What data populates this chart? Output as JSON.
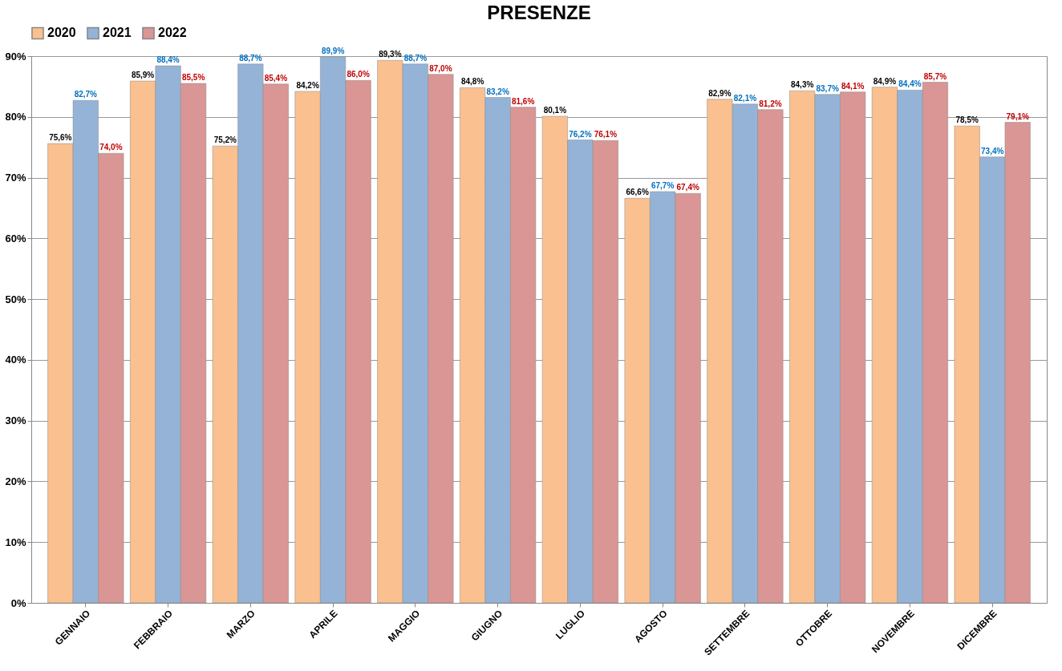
{
  "chart_data": {
    "type": "bar",
    "title": "PRESENZE",
    "categories": [
      "GENNAIO",
      "FEBBRAIO",
      "MARZO",
      "APRILE",
      "MAGGIO",
      "GIUGNO",
      "LUGLIO",
      "AGOSTO",
      "SETTEMBRE",
      "OTTOBRE",
      "NOVEMBRE",
      "DICEMBRE"
    ],
    "series": [
      {
        "name": "2020",
        "color": "#fac08f",
        "values": [
          75.6,
          85.9,
          75.2,
          84.2,
          89.3,
          84.8,
          80.1,
          66.6,
          82.9,
          84.3,
          84.9,
          78.5
        ],
        "value_labels": [
          "75,6%",
          "85,9%",
          "75,2%",
          "84,2%",
          "89,3%",
          "84,8%",
          "80,1%",
          "66,6%",
          "82,9%",
          "84,3%",
          "84,9%",
          "78,5%"
        ]
      },
      {
        "name": "2021",
        "color": "#95b3d7",
        "values": [
          82.7,
          88.4,
          88.7,
          89.9,
          88.7,
          83.2,
          76.2,
          67.7,
          82.1,
          83.7,
          84.4,
          73.4
        ],
        "value_labels": [
          "82,7%",
          "88,4%",
          "88,7%",
          "89,9%",
          "88,7%",
          "83,2%",
          "76,2%",
          "67,7%",
          "82,1%",
          "83,7%",
          "84,4%",
          "73,4%"
        ]
      },
      {
        "name": "2022",
        "color": "#d99694",
        "values": [
          74.0,
          85.5,
          85.4,
          86.0,
          87.0,
          81.6,
          76.1,
          67.4,
          81.2,
          84.1,
          85.7,
          79.1
        ],
        "value_labels": [
          "74,0%",
          "85,5%",
          "85,4%",
          "86,0%",
          "87,0%",
          "81,6%",
          "76,1%",
          "67,4%",
          "81,2%",
          "84,1%",
          "85,7%",
          "79,1%"
        ]
      }
    ],
    "ylim": [
      0,
      90
    ],
    "yticks": [
      {
        "value": 0,
        "label": "0%"
      },
      {
        "value": 10,
        "label": "10%"
      },
      {
        "value": 20,
        "label": "20%"
      },
      {
        "value": 30,
        "label": "30%"
      },
      {
        "value": 40,
        "label": "40%"
      },
      {
        "value": 50,
        "label": "50%"
      },
      {
        "value": 60,
        "label": "60%"
      },
      {
        "value": 70,
        "label": "70%"
      },
      {
        "value": 80,
        "label": "80%"
      },
      {
        "value": 90,
        "label": "90%"
      }
    ],
    "grid": "y",
    "legend": "top"
  }
}
